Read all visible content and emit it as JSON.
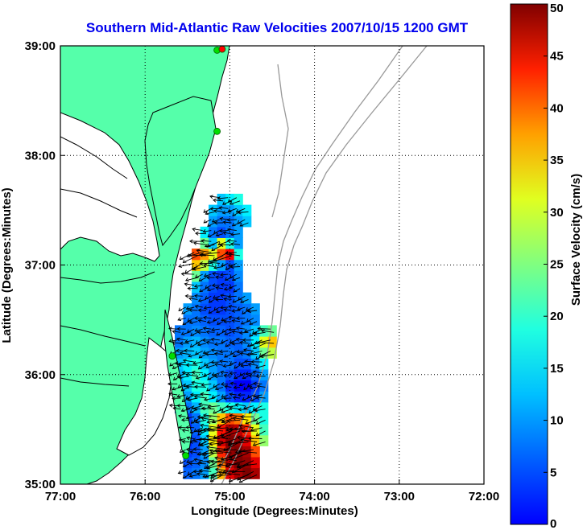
{
  "chart_data": {
    "type": "heatmap",
    "title": "Southern Mid-Atlantic Raw Velocities 2007/10/15 1200 GMT",
    "xlabel": "Longitude (Degrees:Minutes)",
    "ylabel": "Latitude (Degrees:Minutes)",
    "xlim": [
      -77,
      -72
    ],
    "ylim": [
      35,
      39
    ],
    "x_ticks": [
      {
        "value": -77,
        "label": "77:00"
      },
      {
        "value": -76,
        "label": "76:00"
      },
      {
        "value": -75,
        "label": "75:00"
      },
      {
        "value": -74,
        "label": "74:00"
      },
      {
        "value": -73,
        "label": "73:00"
      },
      {
        "value": -72,
        "label": "72:00"
      }
    ],
    "y_ticks": [
      {
        "value": 35,
        "label": "35:00"
      },
      {
        "value": 36,
        "label": "36:00"
      },
      {
        "value": 37,
        "label": "37:00"
      },
      {
        "value": 38,
        "label": "38:00"
      },
      {
        "value": 39,
        "label": "39:00"
      }
    ],
    "grid": true,
    "colorbar": {
      "label": "Surface Velocity (cm/s)",
      "min": 0,
      "max": 50,
      "ticks": [
        {
          "value": 0,
          "label": "0"
        },
        {
          "value": 5,
          "label": "5"
        },
        {
          "value": 10,
          "label": "10"
        },
        {
          "value": 15,
          "label": "15"
        },
        {
          "value": 20,
          "label": "20"
        },
        {
          "value": 25,
          "label": "25"
        },
        {
          "value": 30,
          "label": "30"
        },
        {
          "value": 35,
          "label": "35"
        },
        {
          "value": 40,
          "label": "40"
        },
        {
          "value": 45,
          "label": "45"
        },
        {
          "value": 50,
          "label": "50"
        }
      ],
      "colormap": "jet"
    },
    "speed_field": {
      "lon_start": -75.7,
      "lat_start": 35.1,
      "d_lon": 0.1,
      "d_lat": 0.1,
      "rows": [
        [
          null,
          null,
          11,
          12,
          14,
          22,
          35,
          45,
          48,
          50,
          48,
          null,
          null,
          null,
          null
        ],
        [
          null,
          null,
          10,
          11,
          13,
          24,
          38,
          47,
          50,
          49,
          45,
          null,
          null,
          null,
          null
        ],
        [
          null,
          null,
          9,
          10,
          14,
          28,
          42,
          49,
          50,
          48,
          40,
          null,
          null,
          null,
          null
        ],
        [
          null,
          null,
          8,
          10,
          16,
          32,
          46,
          50,
          49,
          45,
          34,
          26,
          null,
          null,
          null
        ],
        [
          null,
          null,
          8,
          11,
          18,
          30,
          43,
          48,
          47,
          42,
          30,
          22,
          null,
          null,
          null
        ],
        [
          null,
          null,
          9,
          12,
          20,
          26,
          34,
          40,
          38,
          32,
          24,
          20,
          null,
          null,
          null
        ],
        [
          null,
          10,
          12,
          15,
          22,
          24,
          22,
          20,
          18,
          16,
          18,
          20,
          null,
          null,
          null
        ],
        [
          null,
          12,
          14,
          18,
          22,
          18,
          14,
          10,
          8,
          8,
          10,
          14,
          null,
          null,
          null
        ],
        [
          null,
          14,
          16,
          20,
          20,
          16,
          12,
          8,
          6,
          6,
          9,
          12,
          null,
          null,
          null
        ],
        [
          null,
          15,
          18,
          22,
          18,
          14,
          12,
          10,
          8,
          8,
          11,
          14,
          null,
          null,
          null
        ],
        [
          null,
          16,
          18,
          20,
          16,
          14,
          12,
          12,
          10,
          10,
          13,
          18,
          null,
          null,
          null
        ],
        [
          null,
          14,
          15,
          16,
          14,
          13,
          12,
          12,
          11,
          12,
          16,
          24,
          28,
          null,
          null
        ],
        [
          null,
          12,
          14,
          15,
          13,
          12,
          12,
          11,
          11,
          13,
          18,
          30,
          34,
          null,
          null
        ],
        [
          null,
          12,
          12,
          13,
          12,
          11,
          11,
          10,
          11,
          13,
          16,
          22,
          24,
          null,
          null
        ],
        [
          null,
          null,
          12,
          12,
          11,
          10,
          10,
          10,
          11,
          12,
          13,
          null,
          null,
          null,
          null
        ],
        [
          null,
          null,
          14,
          12,
          10,
          9,
          9,
          10,
          11,
          12,
          14,
          null,
          null,
          null,
          null
        ],
        [
          null,
          null,
          null,
          13,
          11,
          9,
          9,
          10,
          12,
          14,
          null,
          null,
          null,
          null,
          null
        ],
        [
          null,
          null,
          null,
          16,
          12,
          10,
          9,
          9,
          12,
          null,
          null,
          null,
          null,
          null,
          null
        ],
        [
          null,
          null,
          null,
          24,
          14,
          10,
          9,
          10,
          13,
          null,
          null,
          null,
          null,
          null,
          null
        ],
        [
          null,
          null,
          null,
          34,
          28,
          20,
          14,
          10,
          14,
          null,
          null,
          null,
          null,
          null,
          null
        ],
        [
          null,
          null,
          null,
          40,
          36,
          30,
          40,
          44,
          20,
          null,
          null,
          null,
          null,
          null,
          null
        ],
        [
          null,
          null,
          null,
          null,
          24,
          16,
          30,
          20,
          14,
          null,
          null,
          null,
          null,
          null,
          null
        ],
        [
          null,
          null,
          null,
          null,
          18,
          12,
          10,
          12,
          14,
          null,
          null,
          null,
          null,
          null,
          null
        ],
        [
          null,
          null,
          null,
          null,
          null,
          14,
          12,
          12,
          14,
          16,
          null,
          null,
          null,
          null,
          null
        ],
        [
          null,
          null,
          null,
          null,
          null,
          16,
          14,
          14,
          16,
          18,
          null,
          null,
          null,
          null,
          null
        ],
        [
          null,
          null,
          null,
          null,
          null,
          null,
          16,
          18,
          20,
          null,
          null,
          null,
          null,
          null,
          null
        ]
      ]
    },
    "vectors_note": "black arrows show raw current direction at each grid cell",
    "coastline_color": "#000000",
    "land_color": "#55ffaa",
    "bathymetry_color": "#999999",
    "station_color": "#00dd00",
    "station_alt_color": "#ff0000",
    "stations": [
      {
        "lon": -75.15,
        "lat": 38.96,
        "color": "#00dd00"
      },
      {
        "lon": -75.09,
        "lat": 38.97,
        "color": "#ff0000"
      },
      {
        "lon": -75.15,
        "lat": 38.22,
        "color": "#00dd00"
      },
      {
        "lon": -75.68,
        "lat": 36.17,
        "color": "#00dd00"
      },
      {
        "lon": -75.52,
        "lat": 35.26,
        "color": "#00dd00"
      }
    ]
  }
}
